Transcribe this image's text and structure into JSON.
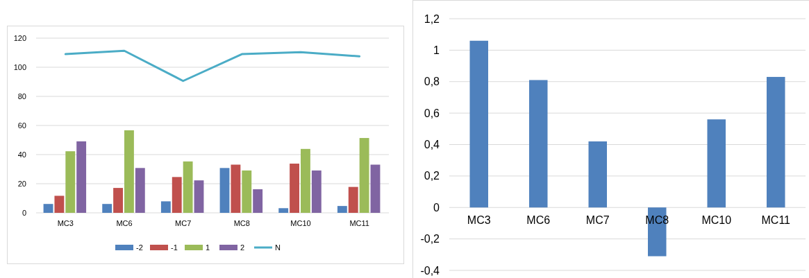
{
  "chart_data": [
    {
      "type": "bar",
      "categories": [
        "MC3",
        "MC6",
        "MC7",
        "MC8",
        "MC10",
        "MC11"
      ],
      "series": [
        {
          "name": "-2",
          "color": "#4f81bd",
          "values": [
            6.1,
            6.1,
            7.9,
            30.8,
            3.2,
            4.7
          ]
        },
        {
          "name": "-1",
          "color": "#c0504d",
          "values": [
            11.7,
            17.1,
            24.6,
            33.1,
            33.8,
            17.8
          ]
        },
        {
          "name": "1",
          "color": "#9bbb59",
          "values": [
            42.3,
            56.7,
            35.3,
            29.1,
            43.9,
            51.4
          ]
        },
        {
          "name": "2",
          "color": "#8064a2",
          "values": [
            49.1,
            30.8,
            22.3,
            16.2,
            29.1,
            33.1
          ]
        },
        {
          "name": "N",
          "type": "line",
          "color": "#4bacc6",
          "values": [
            109,
            111.3,
            90.6,
            109,
            110.4,
            107.5
          ]
        }
      ],
      "ylim": [
        0,
        120
      ],
      "yticks": [
        0,
        20,
        40,
        60,
        80,
        100,
        120
      ],
      "grid": "y",
      "legend": "bottom",
      "marker": "none"
    },
    {
      "type": "bar",
      "categories": [
        "MC3",
        "MC6",
        "MC7",
        "MC8",
        "MC10",
        "MC11"
      ],
      "series": [
        {
          "color": "#4f81bd",
          "values": [
            1.06,
            0.81,
            0.42,
            -0.31,
            0.56,
            0.83
          ]
        }
      ],
      "ylim": [
        -0.4,
        1.2
      ],
      "yticks": [
        {
          "value": -0.4,
          "label": "-0,4"
        },
        {
          "value": -0.2,
          "label": "-0,2"
        },
        0,
        {
          "value": 0.2,
          "label": "0,2"
        },
        {
          "value": 0.4,
          "label": "0,4"
        },
        {
          "value": 0.6,
          "label": "0,6"
        },
        {
          "value": 0.8,
          "label": "0,8"
        },
        1,
        {
          "value": 1.2,
          "label": "1,2"
        }
      ],
      "grid": "y",
      "legend": false
    }
  ]
}
